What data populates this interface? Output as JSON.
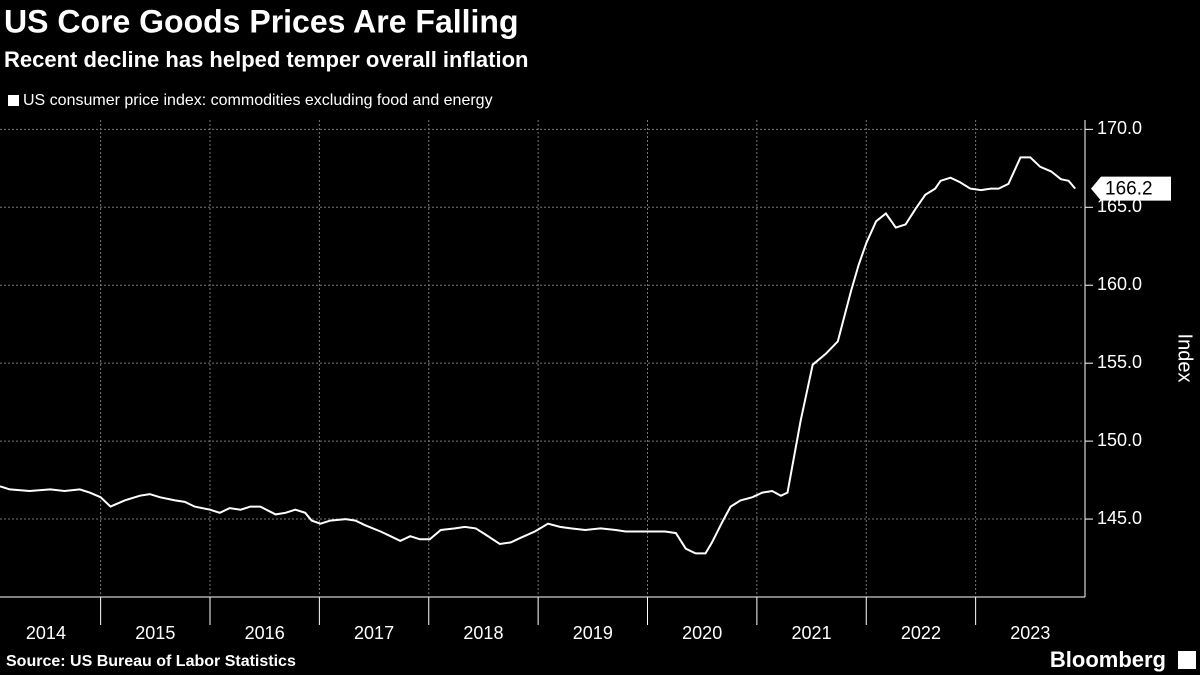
{
  "chart_data": {
    "type": "line",
    "title": "US Core Goods Prices Are Falling",
    "subtitle": "Recent decline has helped temper overall inflation",
    "y_label": "Index",
    "source": "Source: US Bureau of Labor Statistics",
    "brand": "Bloomberg",
    "x": [
      2014.08,
      2014.17,
      2014.35,
      2014.54,
      2014.67,
      2014.81,
      2014.9,
      2015.0,
      2015.09,
      2015.22,
      2015.36,
      2015.45,
      2015.54,
      2015.68,
      2015.77,
      2015.86,
      2016.0,
      2016.09,
      2016.18,
      2016.28,
      2016.37,
      2016.46,
      2016.6,
      2016.69,
      2016.78,
      2016.87,
      2016.93,
      2017.01,
      2017.1,
      2017.24,
      2017.33,
      2017.42,
      2017.56,
      2017.65,
      2017.74,
      2017.83,
      2017.92,
      2018.01,
      2018.11,
      2018.24,
      2018.33,
      2018.43,
      2018.52,
      2018.65,
      2018.75,
      2018.84,
      2018.97,
      2019.09,
      2019.2,
      2019.3,
      2019.43,
      2019.57,
      2019.71,
      2019.8,
      2019.94,
      2020.07,
      2020.16,
      2020.26,
      2020.35,
      2020.44,
      2020.53,
      2020.59,
      2020.69,
      2020.76,
      2020.85,
      2020.96,
      2021.05,
      2021.14,
      2021.22,
      2021.28,
      2021.4,
      2021.51,
      2021.63,
      2021.74,
      2021.86,
      2021.93,
      2022.0,
      2022.09,
      2022.18,
      2022.27,
      2022.36,
      2022.45,
      2022.54,
      2022.63,
      2022.68,
      2022.77,
      2022.86,
      2022.95,
      2023.05,
      2023.14,
      2023.21,
      2023.3,
      2023.41,
      2023.5,
      2023.59,
      2023.69,
      2023.78,
      2023.85,
      2023.91
    ],
    "series": [
      {
        "name": "US consumer price index: commodities excluding food and energy",
        "color": "#ffffff",
        "values": [
          147.1,
          146.9,
          146.8,
          146.9,
          146.8,
          146.9,
          146.7,
          146.4,
          145.8,
          146.2,
          146.5,
          146.6,
          146.4,
          146.2,
          146.1,
          145.8,
          145.6,
          145.4,
          145.7,
          145.6,
          145.8,
          145.8,
          145.3,
          145.4,
          145.6,
          145.4,
          144.9,
          144.7,
          144.9,
          145.0,
          144.9,
          144.6,
          144.2,
          143.9,
          143.6,
          143.9,
          143.7,
          143.7,
          144.3,
          144.4,
          144.5,
          144.4,
          144.0,
          143.4,
          143.5,
          143.8,
          144.2,
          144.7,
          144.5,
          144.4,
          144.3,
          144.4,
          144.3,
          144.2,
          144.2,
          144.2,
          144.2,
          144.1,
          143.1,
          142.8,
          142.8,
          143.5,
          144.9,
          145.8,
          146.2,
          146.4,
          146.7,
          146.8,
          146.5,
          146.7,
          151.3,
          154.9,
          155.6,
          156.4,
          159.6,
          161.3,
          162.7,
          164.1,
          164.6,
          163.7,
          163.9,
          164.9,
          165.8,
          166.2,
          166.7,
          166.9,
          166.6,
          166.2,
          166.1,
          166.2,
          166.2,
          166.5,
          168.2,
          168.2,
          167.6,
          167.3,
          166.8,
          166.7,
          166.2
        ]
      }
    ],
    "xlim": [
      2014.08,
      2024.0
    ],
    "ylim": [
      140.0,
      170.6
    ],
    "xticks": [
      2014,
      2015,
      2016,
      2017,
      2018,
      2019,
      2020,
      2021,
      2022,
      2023
    ],
    "yticks": [
      {
        "value": 145,
        "label": "145.0"
      },
      {
        "value": 150,
        "label": "150.0"
      },
      {
        "value": 155,
        "label": "155.0"
      },
      {
        "value": 160,
        "label": "160.0"
      },
      {
        "value": 165,
        "label": "165.0"
      },
      {
        "value": 170,
        "label": "170.0"
      }
    ],
    "grid": true
  }
}
